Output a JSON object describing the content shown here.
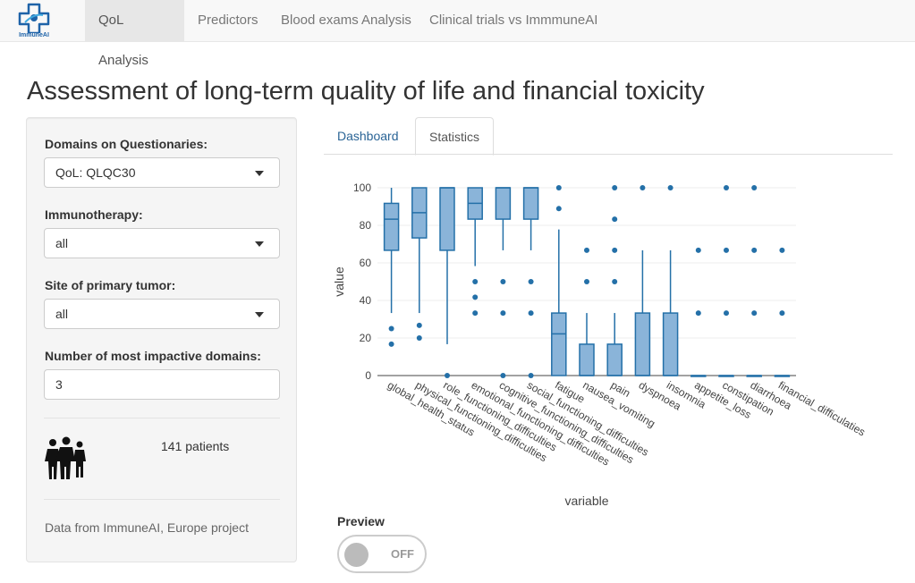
{
  "app": {
    "logo_text": "ImmuneAI"
  },
  "nav": {
    "items": [
      {
        "label": "QoL Analysis",
        "active": true
      },
      {
        "label": "Predictors",
        "active": false
      },
      {
        "label": "Blood exams Analysis",
        "active": false
      },
      {
        "label": "Clinical trials vs ImmmuneAI",
        "active": false
      }
    ]
  },
  "page": {
    "title": "Assessment of long-term quality of life and financial toxicity"
  },
  "sidebar": {
    "domains": {
      "label": "Domains on Questionaries:",
      "value": "QoL: QLQC30"
    },
    "immunotherapy": {
      "label": "Immunotherapy:",
      "value": "all"
    },
    "site": {
      "label": "Site of primary tumor:",
      "value": "all"
    },
    "impactive": {
      "label": "Number of most impactive domains:",
      "value": "3"
    },
    "patients": "141 patients",
    "source": "Data from ImmuneAI, Europe project"
  },
  "tabs": [
    {
      "label": "Dashboard",
      "active": false
    },
    {
      "label": "Statistics",
      "active": true
    }
  ],
  "preview": {
    "label": "Preview",
    "state": "OFF"
  },
  "colors": {
    "box_fill": "#8ab4d9",
    "box_stroke": "#2470a8",
    "accent": "#337ab7"
  },
  "chart_data": {
    "type": "box",
    "xlabel": "variable",
    "ylabel": "value",
    "ylim": [
      0,
      100
    ],
    "yticks": [
      0,
      20,
      40,
      60,
      80,
      100
    ],
    "grid": true,
    "categories": [
      "global_health_status",
      "physical_functioning_difficulties",
      "role_functioning_difficulties",
      "emotional_functioning_difficulties",
      "cognitive_functioning_difficulties",
      "social_functioning_difficulties",
      "fatigue",
      "nausea_vomiting",
      "pain",
      "dyspnoea",
      "insomnia",
      "appetite_loss",
      "constipation",
      "diarrhoea",
      "financial_difficulaties"
    ],
    "boxes": [
      {
        "min": 33.3,
        "q1": 66.7,
        "median": 83.3,
        "q3": 91.7,
        "max": 100,
        "outliers": [
          25,
          16.7
        ]
      },
      {
        "min": 33.3,
        "q1": 73.3,
        "median": 86.7,
        "q3": 100,
        "max": 100,
        "outliers": [
          26.7,
          20
        ]
      },
      {
        "min": 16.7,
        "q1": 66.7,
        "median": 100,
        "q3": 100,
        "max": 100,
        "outliers": [
          0
        ]
      },
      {
        "min": 58.3,
        "q1": 83.3,
        "median": 91.7,
        "q3": 100,
        "max": 100,
        "outliers": [
          50,
          41.7,
          33.3
        ]
      },
      {
        "min": 66.7,
        "q1": 83.3,
        "median": 100,
        "q3": 100,
        "max": 100,
        "outliers": [
          50,
          33.3,
          0
        ]
      },
      {
        "min": 66.7,
        "q1": 83.3,
        "median": 100,
        "q3": 100,
        "max": 100,
        "outliers": [
          50,
          33.3,
          0
        ]
      },
      {
        "min": 0,
        "q1": 0,
        "median": 22.2,
        "q3": 33.3,
        "max": 77.8,
        "outliers": [
          88.9,
          100
        ]
      },
      {
        "min": 0,
        "q1": 0,
        "median": 0,
        "q3": 16.7,
        "max": 33.3,
        "outliers": [
          50,
          66.7
        ]
      },
      {
        "min": 0,
        "q1": 0,
        "median": 0,
        "q3": 16.7,
        "max": 33.3,
        "outliers": [
          50,
          66.7,
          83.3,
          100
        ]
      },
      {
        "min": 0,
        "q1": 0,
        "median": 0,
        "q3": 33.3,
        "max": 66.7,
        "outliers": [
          100
        ]
      },
      {
        "min": 0,
        "q1": 0,
        "median": 0,
        "q3": 33.3,
        "max": 66.7,
        "outliers": [
          100
        ]
      },
      {
        "min": 0,
        "q1": 0,
        "median": 0,
        "q3": 0,
        "max": 0,
        "outliers": [
          33.3,
          66.7
        ]
      },
      {
        "min": 0,
        "q1": 0,
        "median": 0,
        "q3": 0,
        "max": 0,
        "outliers": [
          33.3,
          66.7,
          100
        ]
      },
      {
        "min": 0,
        "q1": 0,
        "median": 0,
        "q3": 0,
        "max": 0,
        "outliers": [
          33.3,
          66.7,
          100
        ]
      },
      {
        "min": 0,
        "q1": 0,
        "median": 0,
        "q3": 0,
        "max": 0,
        "outliers": [
          33.3,
          66.7
        ]
      }
    ]
  }
}
